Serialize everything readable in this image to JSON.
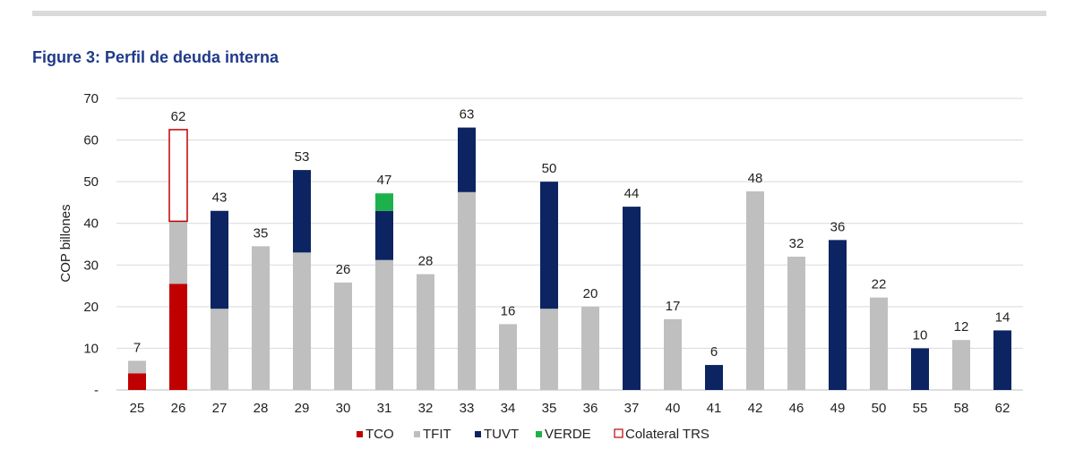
{
  "figure_title": "Figure 3: Perfil de deuda interna",
  "chart_data": {
    "type": "bar",
    "stacked": true,
    "title": "Figure 3: Perfil de deuda interna",
    "xlabel": "",
    "ylabel": "COP billones",
    "ylim": [
      0,
      70
    ],
    "yticks": [
      0,
      10,
      20,
      30,
      40,
      50,
      60,
      70
    ],
    "ytick_labels": [
      "-",
      "10",
      "20",
      "30",
      "40",
      "50",
      "60",
      "70"
    ],
    "categories": [
      "25",
      "26",
      "27",
      "28",
      "29",
      "30",
      "31",
      "32",
      "33",
      "34",
      "35",
      "36",
      "37",
      "40",
      "41",
      "42",
      "46",
      "49",
      "50",
      "55",
      "58",
      "62"
    ],
    "series": [
      {
        "name": "TCO",
        "color": "#c00000",
        "values": [
          4,
          25.5,
          0,
          0,
          0,
          0,
          0,
          0,
          0,
          0,
          0,
          0,
          0,
          0,
          0,
          0,
          0,
          0,
          0,
          0,
          0,
          0
        ]
      },
      {
        "name": "TFIT",
        "color": "#bfbfbf",
        "values": [
          3,
          15,
          19.5,
          34.5,
          33,
          25.8,
          31.2,
          27.8,
          47.5,
          15.8,
          19.5,
          20,
          0,
          17,
          0,
          47.7,
          32,
          0,
          22.2,
          0,
          12,
          0
        ]
      },
      {
        "name": "TUVT",
        "color": "#0c2462",
        "values": [
          0,
          0,
          23.5,
          0,
          19.8,
          0,
          11.8,
          0,
          15.5,
          0,
          30.5,
          0,
          44,
          0,
          6,
          0,
          0,
          36,
          0,
          10,
          0,
          14.3
        ]
      },
      {
        "name": "VERDE",
        "color": "#1db14b",
        "values": [
          0,
          0,
          0,
          0,
          0,
          0,
          4.2,
          0,
          0,
          0,
          0,
          0,
          0,
          0,
          0,
          0,
          0,
          0,
          0,
          0,
          0,
          0
        ]
      },
      {
        "name": "Colateral TRS",
        "color": "#c00000",
        "outline": true,
        "values": [
          0,
          22,
          0,
          0,
          0,
          0,
          0,
          0,
          0,
          0,
          0,
          0,
          0,
          0,
          0,
          0,
          0,
          0,
          0,
          0,
          0,
          0
        ]
      }
    ],
    "totals": [
      "7",
      "62",
      "43",
      "35",
      "53",
      "26",
      "47",
      "28",
      "63",
      "16",
      "50",
      "20",
      "44",
      "17",
      "6",
      "48",
      "32",
      "36",
      "22",
      "10",
      "12",
      "14"
    ],
    "grid": true,
    "legend_position": "bottom"
  }
}
